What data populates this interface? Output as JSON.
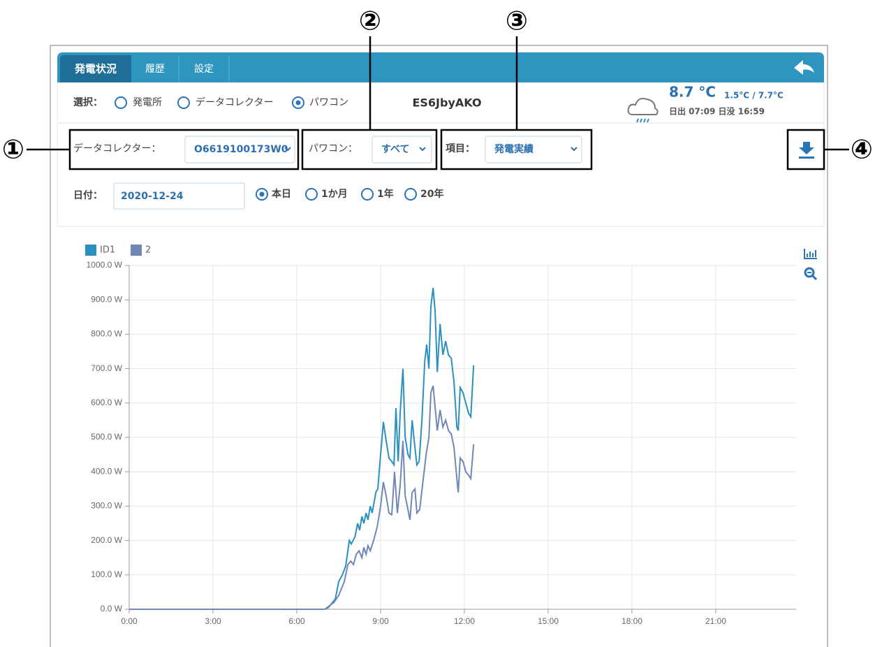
{
  "annotations": [
    "①",
    "②",
    "③",
    "④"
  ],
  "tabs": [
    "発電状況",
    "履歴",
    "設定"
  ],
  "selection": {
    "label": "選択：",
    "options": [
      "発電所",
      "データコレクター",
      "パワコン"
    ],
    "selected": 2
  },
  "device": "ES6JbyAKO",
  "weather": {
    "temperature": "8.7 °C",
    "range": "1.5°C / 7.7°C",
    "sun": "日出 07:09 日没 16:59"
  },
  "filters": {
    "collector_label": "データコレクター：",
    "collector": "O6619100173W0",
    "pcs_label": "パワコン：",
    "pcs": "すべて",
    "item_label": "項目：",
    "item": "発電実績"
  },
  "date": {
    "label": "日付：",
    "value": "2020-12-24",
    "ranges": [
      "本日",
      "1か月",
      "1年",
      "20年"
    ],
    "selected": 0
  },
  "chart_data": {
    "type": "line",
    "grid": true,
    "xlim": [
      0,
      24
    ],
    "xticks": [
      {
        "value": 0,
        "label": "0:00"
      },
      {
        "value": 3,
        "label": "3:00"
      },
      {
        "value": 6,
        "label": "6:00"
      },
      {
        "value": 9,
        "label": "9:00"
      },
      {
        "value": 12,
        "label": "12:00"
      },
      {
        "value": 15,
        "label": "15:00"
      },
      {
        "value": 18,
        "label": "18:00"
      },
      {
        "value": 21,
        "label": "21:00"
      }
    ],
    "ylim": [
      0,
      1000
    ],
    "yticks": [
      {
        "value": 0,
        "label": "0.0 W"
      },
      {
        "value": 100,
        "label": "100.0 W"
      },
      {
        "value": 200,
        "label": "200.0 W"
      },
      {
        "value": 300,
        "label": "300.0 W"
      },
      {
        "value": 400,
        "label": "400.0 W"
      },
      {
        "value": 500,
        "label": "500.0 W"
      },
      {
        "value": 600,
        "label": "600.0 W"
      },
      {
        "value": 700,
        "label": "700.0 W"
      },
      {
        "value": 800,
        "label": "800.0 W"
      },
      {
        "value": 900,
        "label": "900.0 W"
      },
      {
        "value": 1000,
        "label": "1000.0 W"
      }
    ],
    "series": [
      {
        "name": "ID1",
        "color": "#2b8fbf",
        "x": [
          0,
          7.0,
          7.13,
          7.38,
          7.5,
          7.63,
          7.75,
          7.88,
          7.95,
          8.08,
          8.18,
          8.25,
          8.33,
          8.4,
          8.48,
          8.55,
          8.63,
          8.7,
          8.83,
          8.9,
          9.0,
          9.1,
          9.2,
          9.3,
          9.4,
          9.48,
          9.55,
          9.63,
          9.7,
          9.8,
          9.88,
          9.98,
          10.05,
          10.13,
          10.23,
          10.3,
          10.38,
          10.48,
          10.58,
          10.65,
          10.73,
          10.8,
          10.88,
          10.95,
          11.03,
          11.13,
          11.23,
          11.33,
          11.43,
          11.53,
          11.63,
          11.73,
          11.78,
          11.85,
          11.95,
          12.05,
          12.15,
          12.23,
          12.33
        ],
        "values": [
          0,
          0,
          5,
          30,
          80,
          100,
          125,
          200,
          190,
          210,
          250,
          230,
          270,
          250,
          280,
          260,
          300,
          280,
          340,
          350,
          450,
          545,
          490,
          440,
          430,
          420,
          585,
          430,
          570,
          700,
          500,
          450,
          440,
          550,
          470,
          420,
          430,
          550,
          720,
          770,
          700,
          880,
          935,
          870,
          690,
          830,
          740,
          780,
          740,
          730,
          660,
          530,
          520,
          645,
          630,
          600,
          570,
          560,
          710
        ]
      },
      {
        "name": "2",
        "color": "#6f86b6",
        "x": [
          0,
          7.0,
          7.33,
          7.5,
          7.7,
          7.83,
          7.93,
          8.03,
          8.13,
          8.23,
          8.33,
          8.4,
          8.48,
          8.55,
          8.63,
          8.75,
          8.88,
          9.0,
          9.1,
          9.2,
          9.3,
          9.4,
          9.5,
          9.6,
          9.7,
          9.8,
          9.88,
          9.98,
          10.05,
          10.13,
          10.23,
          10.3,
          10.4,
          10.5,
          10.63,
          10.73,
          10.8,
          10.88,
          10.95,
          11.03,
          11.13,
          11.23,
          11.33,
          11.43,
          11.53,
          11.63,
          11.73,
          11.78,
          11.85,
          11.95,
          12.05,
          12.15,
          12.23,
          12.33
        ],
        "values": [
          0,
          0,
          20,
          40,
          80,
          130,
          140,
          130,
          160,
          170,
          150,
          180,
          160,
          185,
          170,
          200,
          240,
          300,
          370,
          330,
          280,
          275,
          400,
          280,
          360,
          490,
          330,
          290,
          260,
          340,
          350,
          280,
          290,
          360,
          450,
          500,
          630,
          650,
          590,
          520,
          580,
          530,
          550,
          520,
          510,
          470,
          380,
          340,
          440,
          430,
          400,
          390,
          380,
          480
        ]
      }
    ]
  }
}
